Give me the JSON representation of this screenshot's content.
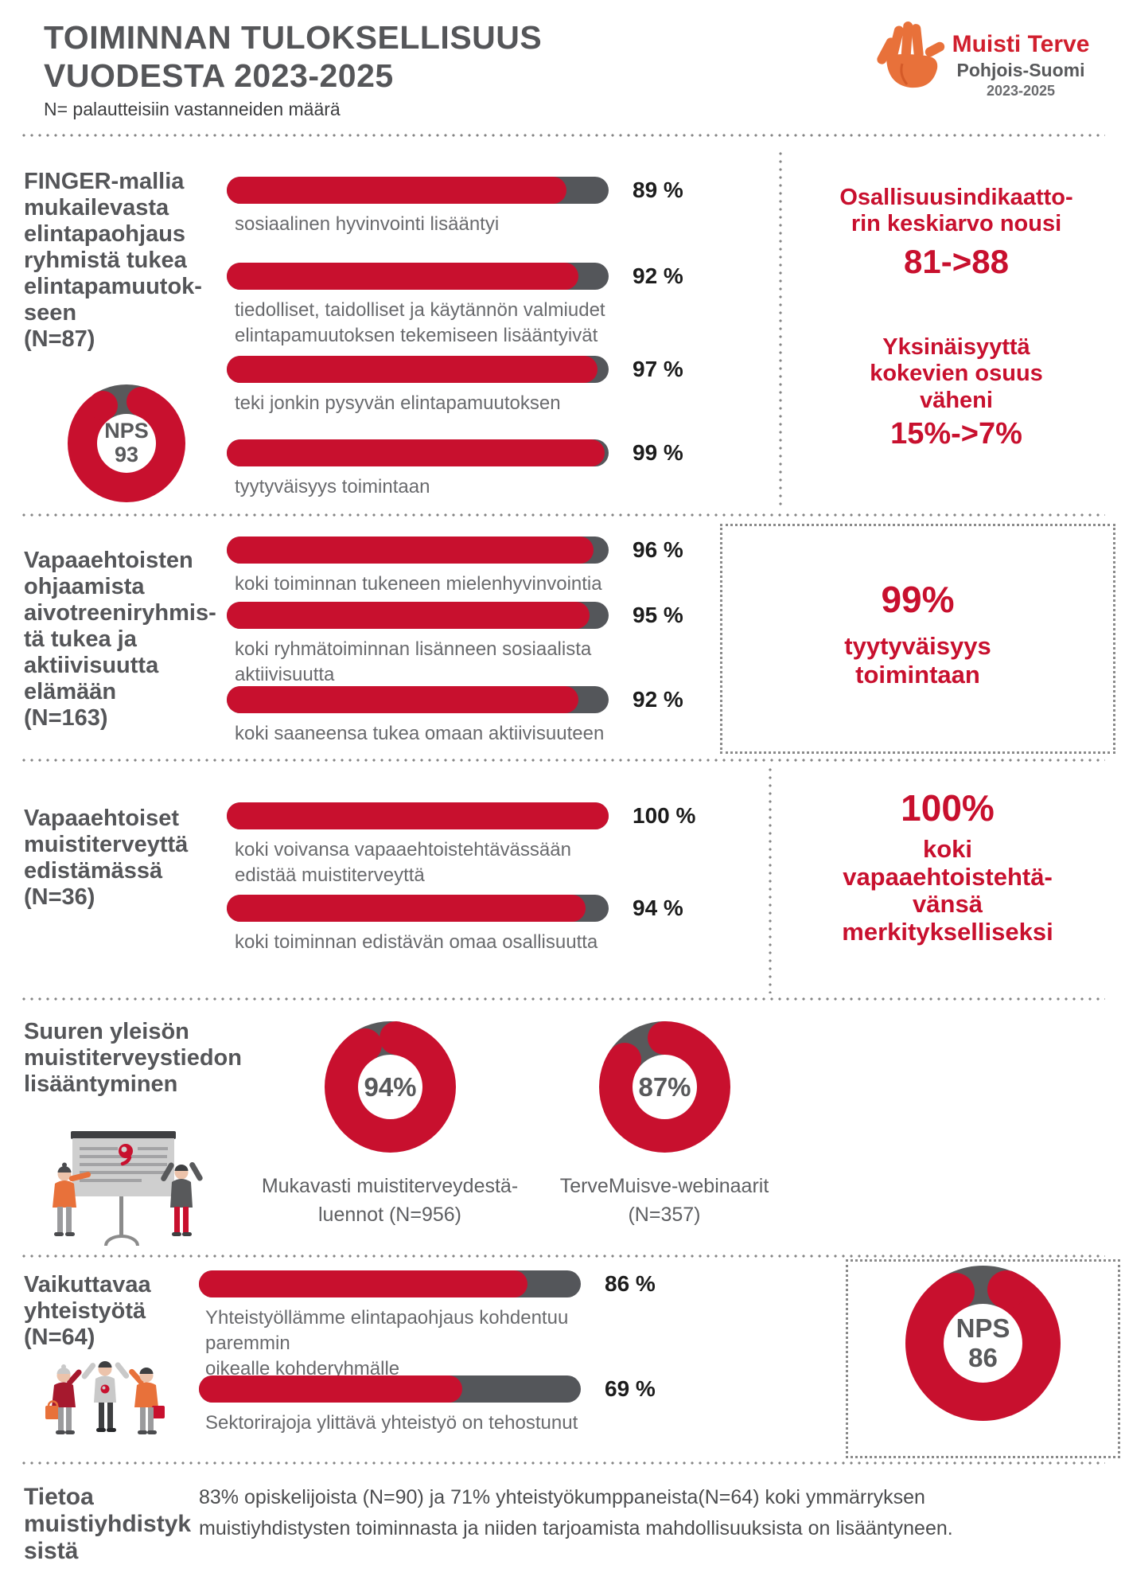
{
  "colors": {
    "red": "#C8102E",
    "dark": "#58595B",
    "orange": "#E8713A"
  },
  "header": {
    "title_line1": "TOIMINNAN TULOKSELLISUUS",
    "title_line2": "VUODESTA 2023-2025",
    "subtitle": "N= palautteisiin vastanneiden määrä",
    "logo": {
      "hand_icon": "hand-icon",
      "brand": "Muisti Terve",
      "region": "Pohjois-Suomi",
      "years": "2023-2025"
    }
  },
  "s1": {
    "heading": "FINGER-mallia\nmukailevasta\nelintapaohjaus\nryhmistä tukea\nelintapamuutok-\nseen\n(N=87)",
    "nps": {
      "label": "NPS",
      "value": "93",
      "size": 148,
      "ring": 37,
      "gap_deg": 52,
      "gap_center_deg": -6
    },
    "bars": [
      {
        "pct": 89,
        "value": "89 %",
        "label": "sosiaalinen hyvinvointi lisääntyi"
      },
      {
        "pct": 92,
        "value": "92 %",
        "label": "tiedolliset, taidolliset ja käytännön valmiudet\nelintapamuutoksen tekemiseen lisääntyivät"
      },
      {
        "pct": 97,
        "value": "97 %",
        "label": "teki jonkin pysyvän elintapamuutoksen"
      },
      {
        "pct": 99,
        "value": "99 %",
        "label": "tyytyväisyys toimintaan"
      }
    ],
    "stats": [
      {
        "title": "Osallisuusindikaatto-\nrin keskiarvo nousi",
        "value": "81->88"
      },
      {
        "title": "Yksinäisyyttä\nkokevien osuus\nväheni",
        "value": "15%->7%"
      }
    ]
  },
  "s2": {
    "heading": "Vapaaehtoisten\nohjaamista\naivotreeniryhmis-\ntä tukea ja\naktiivisuutta\nelämään\n(N=163)",
    "bars": [
      {
        "pct": 96,
        "value": "96 %",
        "label": "koki toiminnan tukeneen mielenhyvinvointia"
      },
      {
        "pct": 95,
        "value": "95 %",
        "label": "koki ryhmätoiminnan lisänneen sosiaalista\naktiivisuutta"
      },
      {
        "pct": 92,
        "value": "92 %",
        "label": "koki saaneensa tukea omaan aktiivisuuteen"
      }
    ],
    "callout": {
      "value": "99%",
      "label": "tyytyväisyys\ntoimintaan"
    }
  },
  "s3": {
    "heading": "Vapaaehtoiset\nmuistiterveyttä\nedistämässä\n (N=36)",
    "bars": [
      {
        "pct": 100,
        "value": "100 %",
        "label": "koki voivansa vapaaehtoistehtävässään\nedistää muistiterveyttä"
      },
      {
        "pct": 94,
        "value": "94 %",
        "label": "koki toiminnan edistävän omaa osallisuutta"
      }
    ],
    "callout": {
      "value": "100%",
      "label": "koki\nvapaaehtoistehtä-\nvänsä\nmerkitykselliseksi"
    }
  },
  "s4": {
    "heading": "Suuren yleisön\nmuistiterveystiedon\nlisääntyminen",
    "illustration": "presentation-audience-illustration",
    "donuts": [
      {
        "value": "94%",
        "size": 165,
        "ring": 42,
        "gap_deg": 38,
        "gap_center_deg": -12,
        "label": "Mukavasti muistiterveydestä-\nluennot (N=956)"
      },
      {
        "value": "87%",
        "size": 165,
        "ring": 42,
        "gap_deg": 55,
        "gap_center_deg": -28,
        "label": "TerveMuisve-webinaarit\n(N=357)"
      }
    ]
  },
  "s5": {
    "heading": "Vaikuttavaa\nyhteistyötä\n(N=64)",
    "illustration": "three-people-highfive-illustration",
    "bars": [
      {
        "pct": 86,
        "value": "86 %",
        "label": "Yhteistyöllämme elintapaohjaus kohdentuu paremmin\noikealle kohderyhmälle"
      },
      {
        "pct": 69,
        "value": "69 %",
        "label": "Sektorirajoja ylittävä yhteistyö on tehostunut"
      }
    ],
    "nps": {
      "label": "NPS",
      "value": "86",
      "size": 195,
      "ring": 48,
      "gap_deg": 52,
      "gap_center_deg": -2
    }
  },
  "s6": {
    "heading": "Tietoa\nmuistiyhdistyk\nsistä",
    "body": "83% opiskelijoista (N=90) ja 71% yhteistyökumppaneista(N=64) koki ymmärryksen muistiyhdistysten toiminnasta ja niiden tarjoamista mahdollisuuksista on lisääntyneen."
  },
  "chart_data": [
    {
      "type": "bar",
      "title": "FINGER-mallia mukailevasta elintapaohjausryhmistä tukea elintapamuutokseen",
      "n": "N=87",
      "unit": "%",
      "xlim": [
        0,
        100
      ],
      "categories": [
        "sosiaalinen hyvinvointi lisääntyi",
        "tiedolliset, taidolliset ja käytännön valmiudet elintapamuutoksen tekemiseen lisääntyivät",
        "teki jonkin pysyvän elintapamuutoksen",
        "tyytyväisyys toimintaan"
      ],
      "values": [
        89,
        92,
        97,
        99
      ]
    },
    {
      "type": "donut",
      "title": "NPS",
      "value": 93
    },
    {
      "type": "stat",
      "title": "Osallisuusindikaattorin keskiarvo nousi",
      "from": 81,
      "to": 88
    },
    {
      "type": "stat",
      "title": "Yksinäisyyttä kokevien osuus väheni",
      "from": "15%",
      "to": "7%"
    },
    {
      "type": "bar",
      "title": "Vapaaehtoisten ohjaamista aivotreeniryhmistä tukea ja aktiivisuutta elämään",
      "n": "N=163",
      "unit": "%",
      "xlim": [
        0,
        100
      ],
      "categories": [
        "koki toiminnan tukeneen mielenhyvinvointia",
        "koki ryhmätoiminnan lisänneen sosiaalista aktiivisuutta",
        "koki saaneensa tukea omaan aktiivisuuteen"
      ],
      "values": [
        96,
        95,
        92
      ]
    },
    {
      "type": "stat",
      "title": "tyytyväisyys toimintaan",
      "value": "99%"
    },
    {
      "type": "bar",
      "title": "Vapaaehtoiset muistiterveyttä edistämässä",
      "n": "N=36",
      "unit": "%",
      "xlim": [
        0,
        100
      ],
      "categories": [
        "koki voivansa vapaaehtoistehtävässään edistää muistiterveyttä",
        "koki toiminnan edistävän omaa osallisuutta"
      ],
      "values": [
        100,
        94
      ]
    },
    {
      "type": "stat",
      "title": "koki vapaaehtoistehtävänsä merkitykselliseksi",
      "value": "100%"
    },
    {
      "type": "donut",
      "title": "Mukavasti muistiterveydestä -luennot",
      "n": "N=956",
      "value": 94,
      "unit": "%"
    },
    {
      "type": "donut",
      "title": "TerveMuisve-webinaarit",
      "n": "N=357",
      "value": 87,
      "unit": "%"
    },
    {
      "type": "bar",
      "title": "Vaikuttavaa yhteistyötä",
      "n": "N=64",
      "unit": "%",
      "xlim": [
        0,
        100
      ],
      "categories": [
        "Yhteistyöllämme elintapaohjaus kohdentuu paremmin oikealle kohderyhmälle",
        "Sektorirajoja ylittävä yhteistyö on tehostunut"
      ],
      "values": [
        86,
        69
      ]
    },
    {
      "type": "donut",
      "title": "NPS",
      "value": 86
    },
    {
      "type": "stat",
      "title": "koki ymmärryksen muistiyhdistysten toiminnasta ja niiden tarjoamista mahdollisuuksista lisääntyneen",
      "values": [
        {
          "group": "opiskelijoista",
          "n": "N=90",
          "value": "83%"
        },
        {
          "group": "yhteistyökumppaneista",
          "n": "N=64",
          "value": "71%"
        }
      ]
    }
  ]
}
